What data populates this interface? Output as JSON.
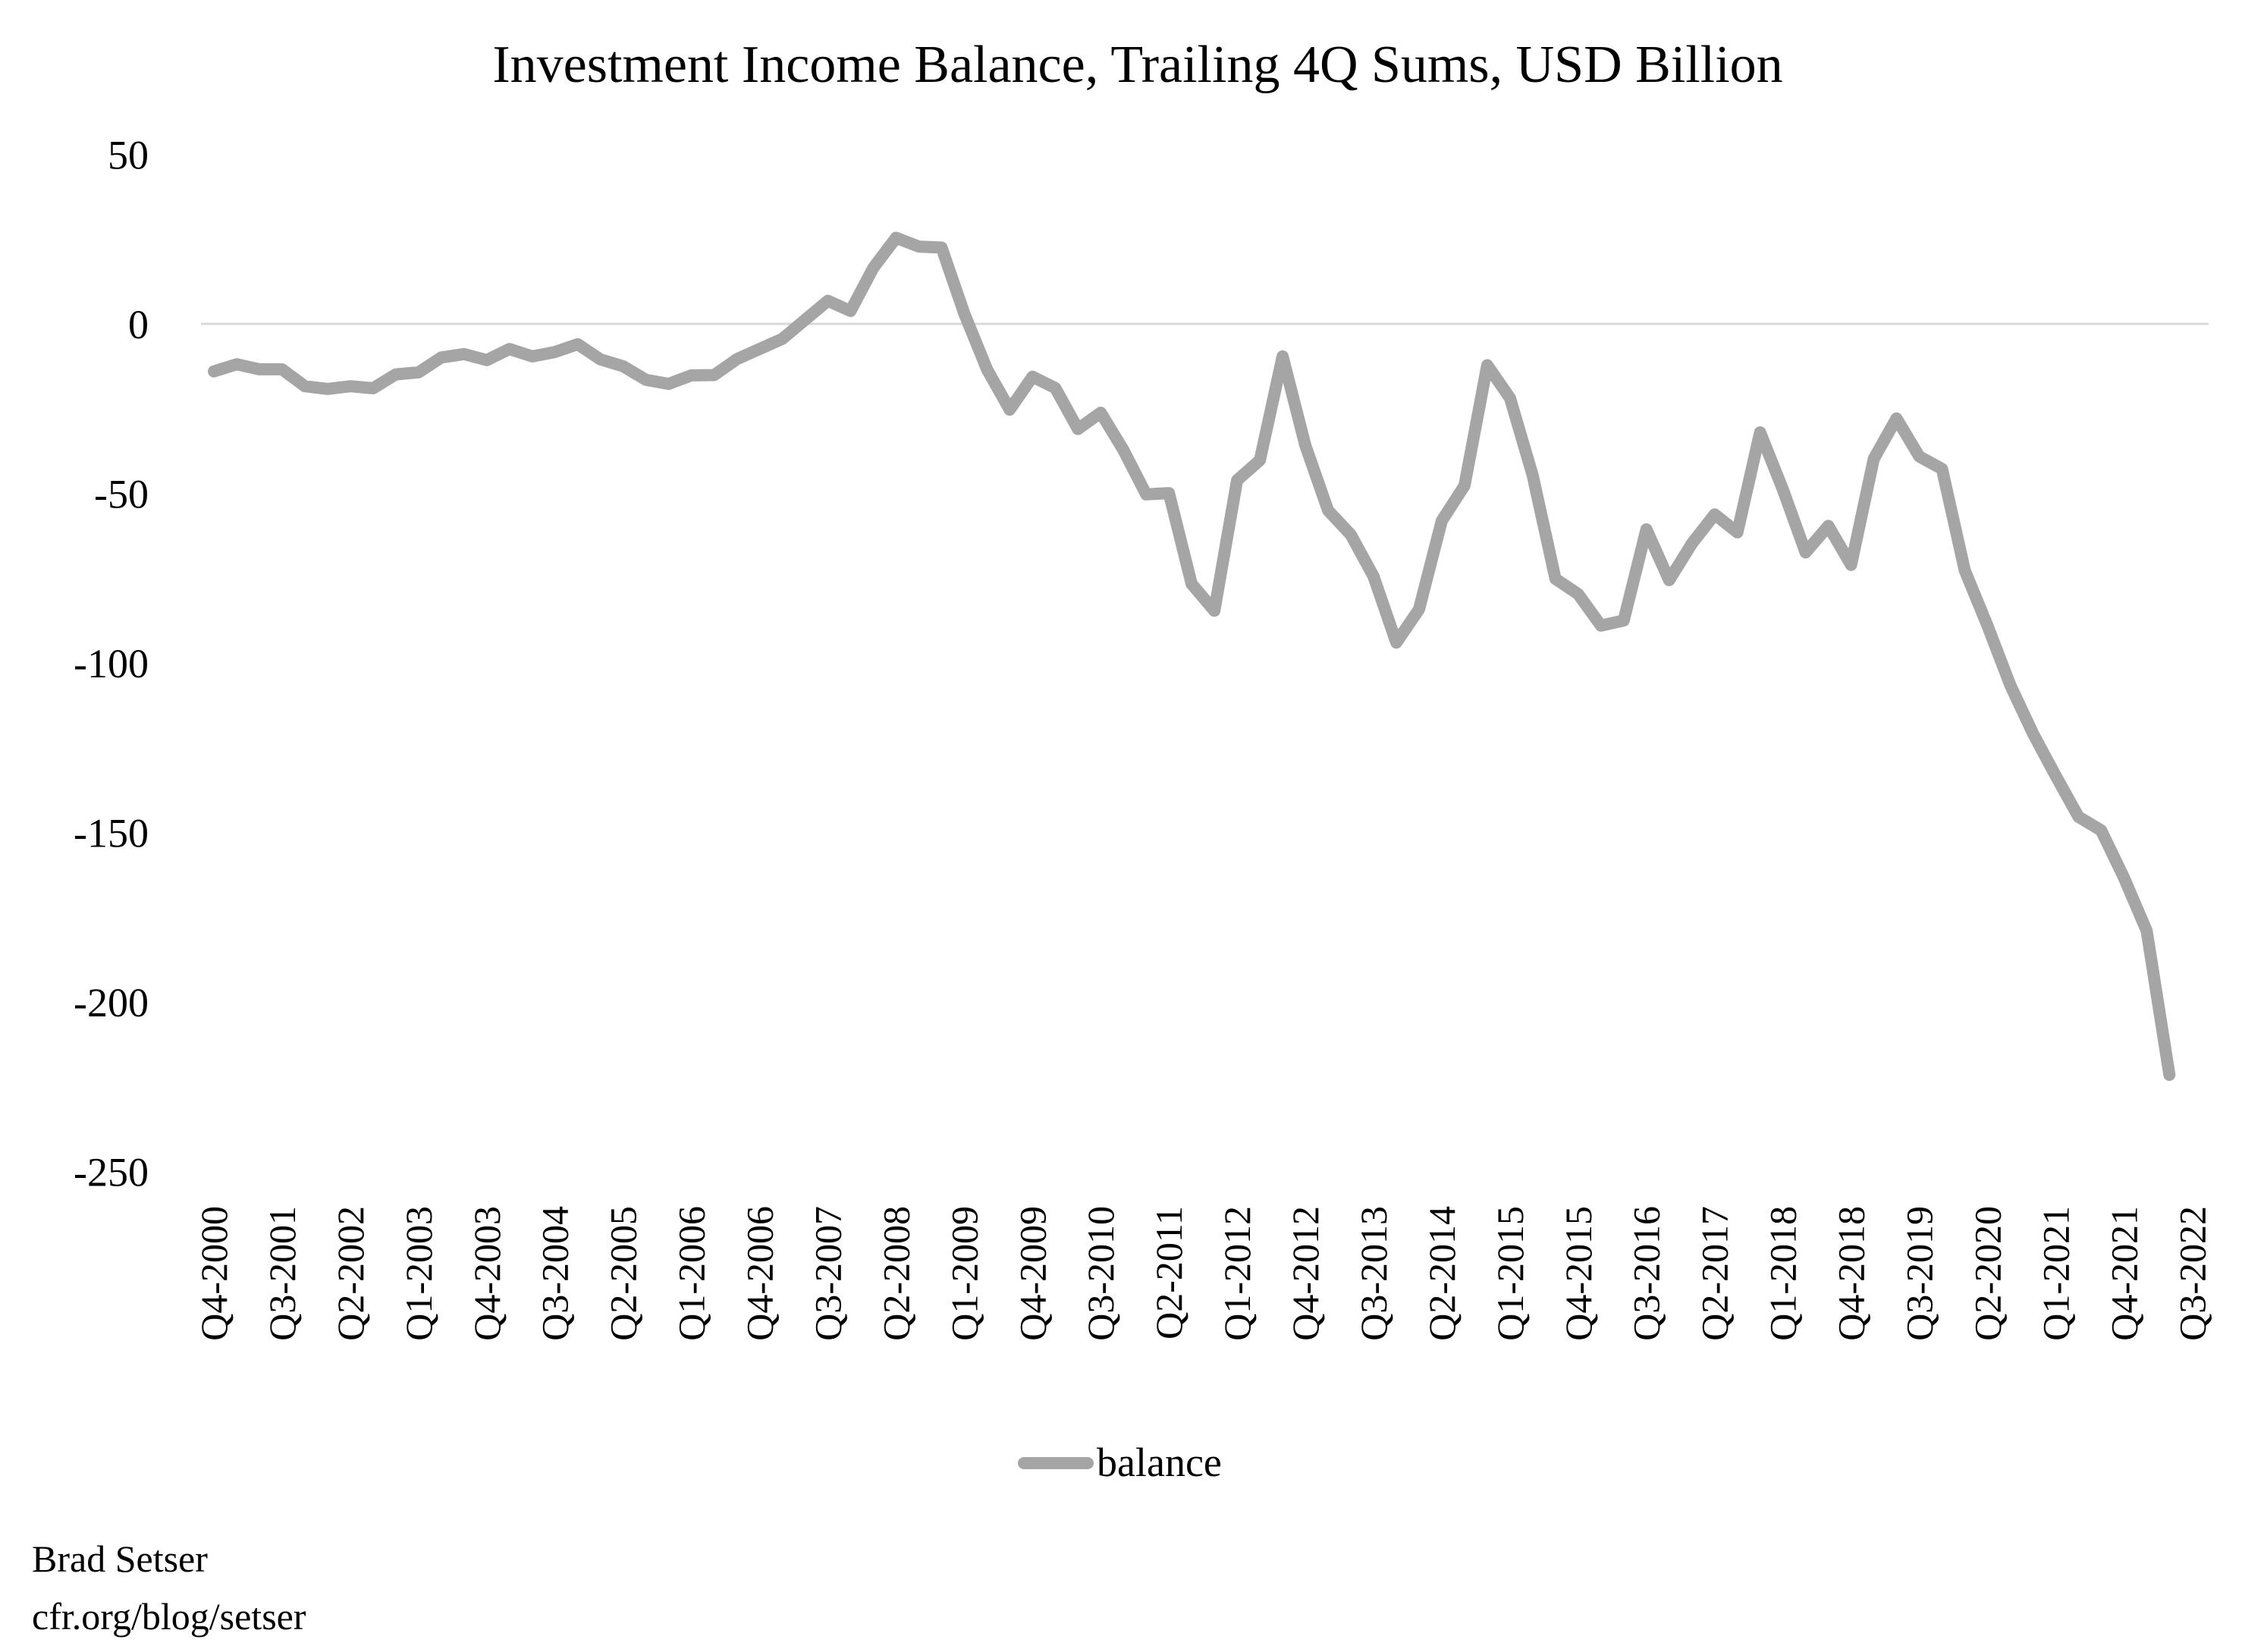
{
  "chart_data": {
    "type": "line",
    "title": "Investment Income Balance, Trailing 4Q Sums, USD Billion",
    "xlabel": "",
    "ylabel": "",
    "ylim": [
      -250,
      50
    ],
    "yticks": [
      50,
      0,
      -50,
      -100,
      -150,
      -200,
      -250
    ],
    "grid": {
      "horizontal_zero_line_only": true
    },
    "legend_position": "bottom",
    "x_tick_labels_shown": [
      "Q4-2000",
      "Q3-2001",
      "Q2-2002",
      "Q1-2003",
      "Q4-2003",
      "Q3-2004",
      "Q2-2005",
      "Q1-2006",
      "Q4-2006",
      "Q3-2007",
      "Q2-2008",
      "Q1-2009",
      "Q4-2009",
      "Q3-2010",
      "Q2-2011",
      "Q1-2012",
      "Q4-2012",
      "Q3-2013",
      "Q2-2014",
      "Q1-2015",
      "Q4-2015",
      "Q3-2016",
      "Q2-2017",
      "Q1-2018",
      "Q4-2018",
      "Q3-2019",
      "Q2-2020",
      "Q1-2021",
      "Q4-2021",
      "Q3-2022"
    ],
    "categories": [
      "Q4-2000",
      "Q1-2001",
      "Q2-2001",
      "Q3-2001",
      "Q4-2001",
      "Q1-2002",
      "Q2-2002",
      "Q3-2002",
      "Q4-2002",
      "Q1-2003",
      "Q2-2003",
      "Q3-2003",
      "Q4-2003",
      "Q1-2004",
      "Q2-2004",
      "Q3-2004",
      "Q4-2004",
      "Q1-2005",
      "Q2-2005",
      "Q3-2005",
      "Q4-2005",
      "Q1-2006",
      "Q2-2006",
      "Q3-2006",
      "Q4-2006",
      "Q1-2007",
      "Q2-2007",
      "Q3-2007",
      "Q4-2007",
      "Q1-2008",
      "Q2-2008",
      "Q3-2008",
      "Q4-2008",
      "Q1-2009",
      "Q2-2009",
      "Q3-2009",
      "Q4-2009",
      "Q1-2010",
      "Q2-2010",
      "Q3-2010",
      "Q4-2010",
      "Q1-2011",
      "Q2-2011",
      "Q3-2011",
      "Q4-2011",
      "Q1-2012",
      "Q2-2012",
      "Q3-2012",
      "Q4-2012",
      "Q1-2013",
      "Q2-2013",
      "Q3-2013",
      "Q4-2013",
      "Q1-2014",
      "Q2-2014",
      "Q3-2014",
      "Q4-2014",
      "Q1-2015",
      "Q2-2015",
      "Q3-2015",
      "Q4-2015",
      "Q1-2016",
      "Q2-2016",
      "Q3-2016",
      "Q4-2016",
      "Q1-2017",
      "Q2-2017",
      "Q3-2017",
      "Q4-2017",
      "Q1-2018",
      "Q2-2018",
      "Q3-2018",
      "Q4-2018",
      "Q1-2019",
      "Q2-2019",
      "Q3-2019",
      "Q4-2019",
      "Q1-2020",
      "Q2-2020",
      "Q3-2020",
      "Q4-2020",
      "Q1-2021",
      "Q2-2021",
      "Q3-2021",
      "Q4-2021",
      "Q1-2022",
      "Q2-2022",
      "Q3-2022"
    ],
    "series": [
      {
        "name": "balance",
        "color": "#a5a5a5",
        "values": [
          -14.0,
          -11.9,
          -13.4,
          -13.4,
          -18.4,
          -19.2,
          -18.4,
          -19.0,
          -14.9,
          -14.3,
          -9.9,
          -8.9,
          -10.7,
          -7.4,
          -9.6,
          -8.3,
          -6.0,
          -10.5,
          -12.5,
          -16.5,
          -17.7,
          -15.2,
          -15.1,
          -10.4,
          -7.4,
          -4.4,
          1.2,
          6.8,
          3.8,
          16.5,
          25.4,
          22.8,
          22.5,
          3.1,
          -13.4,
          -25.3,
          -15.6,
          -18.9,
          -31.0,
          -26.2,
          -37.2,
          -50.3,
          -49.9,
          -76.7,
          -84.6,
          -46.1,
          -40.2,
          -9.6,
          -35.8,
          -55.0,
          -62.2,
          -74.5,
          -94.0,
          -84.2,
          -58.1,
          -47.7,
          -12.2,
          -21.9,
          -44.7,
          -75.2,
          -79.7,
          -89.0,
          -87.5,
          -60.6,
          -75.6,
          -64.8,
          -56.2,
          -61.5,
          -32.0,
          -48.8,
          -67.4,
          -59.6,
          -71.1,
          -39.8,
          -27.9,
          -39.1,
          -42.8,
          -72.7,
          -89.0,
          -106.5,
          -120.8,
          -133.3,
          -145.4,
          -149.4,
          -163.3,
          -179.0,
          -221.5,
          null
        ]
      }
    ]
  },
  "legend": {
    "label": "balance"
  },
  "credits": {
    "author": "Brad Setser",
    "url": "cfr.org/blog/setser"
  },
  "colors": {
    "line": "#a5a5a5",
    "zero_line": "#d9d9d9",
    "text": "#000000",
    "background": "#ffffff"
  }
}
